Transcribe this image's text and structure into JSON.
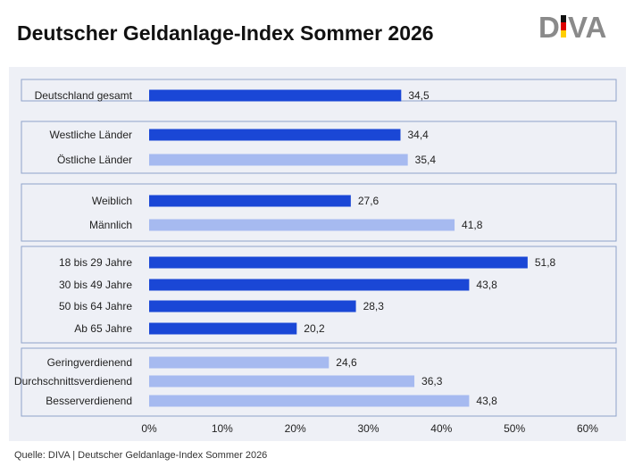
{
  "header": {
    "title": "Deutscher Geldanlage-Index Sommer 2026",
    "logo_text": "DIVA"
  },
  "footer": {
    "source": "Quelle: DIVA | Deutscher Geldanlage-Index Sommer 2026"
  },
  "colors": {
    "dark_bar": "#1a47d6",
    "light_bar": "#a6baf0",
    "panel_bg": "#eef0f6",
    "group_border": "#8fa2c9",
    "logo_grey": "#8a8a8a",
    "flag_black": "#111111",
    "flag_red": "#dd0000",
    "flag_gold": "#ffce00"
  },
  "chart_data": {
    "type": "bar",
    "orientation": "horizontal",
    "title": "Deutscher Geldanlage-Index Sommer 2026",
    "xlim": [
      0,
      60
    ],
    "x_ticks": [
      "0%",
      "10%",
      "20%",
      "30%",
      "40%",
      "50%",
      "60%"
    ],
    "groups": [
      {
        "items": [
          {
            "label": "Deutschland gesamt",
            "value": 34.5,
            "value_label": "34,5",
            "shade": "dark"
          }
        ]
      },
      {
        "items": [
          {
            "label": "Westliche Länder",
            "value": 34.4,
            "value_label": "34,4",
            "shade": "dark"
          },
          {
            "label": "Östliche Länder",
            "value": 35.4,
            "value_label": "35,4",
            "shade": "light"
          }
        ]
      },
      {
        "items": [
          {
            "label": "Weiblich",
            "value": 27.6,
            "value_label": "27,6",
            "shade": "dark"
          },
          {
            "label": "Männlich",
            "value": 41.8,
            "value_label": "41,8",
            "shade": "light"
          }
        ]
      },
      {
        "items": [
          {
            "label": "18 bis 29 Jahre",
            "value": 51.8,
            "value_label": "51,8",
            "shade": "dark"
          },
          {
            "label": "30 bis 49 Jahre",
            "value": 43.8,
            "value_label": "43,8",
            "shade": "dark"
          },
          {
            "label": "50 bis 64 Jahre",
            "value": 28.3,
            "value_label": "28,3",
            "shade": "dark"
          },
          {
            "label": "Ab 65 Jahre",
            "value": 20.2,
            "value_label": "20,2",
            "shade": "dark"
          }
        ]
      },
      {
        "items": [
          {
            "label": "Geringverdienend",
            "value": 24.6,
            "value_label": "24,6",
            "shade": "light"
          },
          {
            "label": "Durchschnittsverdienend",
            "value": 36.3,
            "value_label": "36,3",
            "shade": "light"
          },
          {
            "label": "Besserverdienend",
            "value": 43.8,
            "value_label": "43,8",
            "shade": "light"
          }
        ]
      }
    ]
  }
}
